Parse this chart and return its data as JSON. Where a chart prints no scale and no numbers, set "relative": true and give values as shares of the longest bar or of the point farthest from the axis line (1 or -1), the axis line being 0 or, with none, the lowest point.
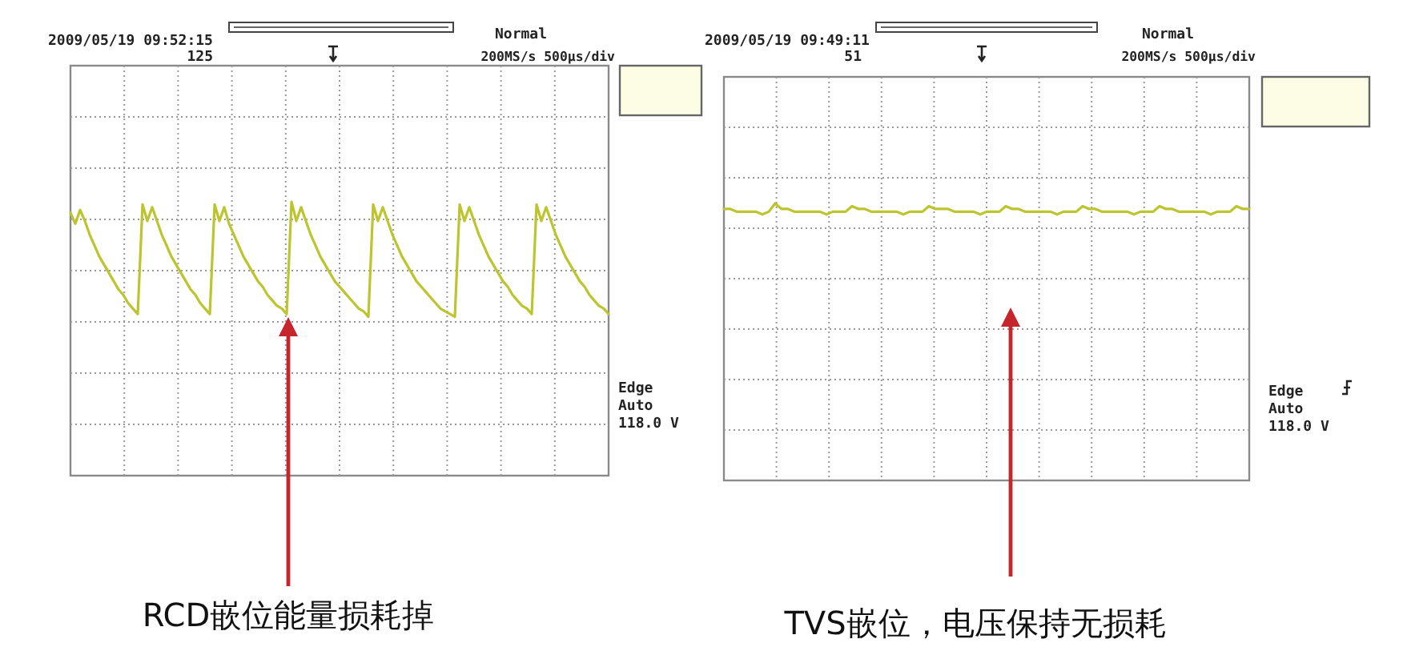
{
  "chart_data": [
    {
      "type": "line",
      "relative": true,
      "grid": true,
      "categories": [
        null,
        null,
        null,
        null,
        null,
        null,
        null,
        null,
        null,
        null,
        null,
        null,
        null,
        null,
        null,
        null,
        null,
        null,
        null,
        null,
        null,
        null,
        null,
        null,
        null,
        null,
        null,
        null,
        null,
        null,
        null,
        null,
        null,
        null,
        null,
        null,
        null,
        null,
        null,
        null,
        null,
        null,
        null,
        null,
        null,
        null,
        null,
        null,
        null,
        null,
        null,
        null,
        null,
        null,
        null,
        null,
        null,
        null,
        null,
        null,
        null,
        null,
        null,
        null,
        null,
        null,
        null,
        null,
        null,
        null,
        null,
        null,
        null,
        null,
        null,
        null,
        null,
        null,
        null,
        null,
        null,
        null,
        null,
        null,
        null,
        null,
        null,
        null,
        null,
        null,
        null,
        null,
        null,
        null,
        null,
        null,
        null,
        null,
        null,
        null,
        null,
        null,
        null,
        null,
        null,
        null,
        null,
        null,
        null,
        null,
        null,
        null,
        null
      ],
      "series": [
        {
          "color": "#bcc42e",
          "values": [
            0.96,
            0.92,
            0.97,
            0.93,
            0.88,
            0.84,
            0.8,
            0.77,
            0.74,
            0.71,
            0.68,
            0.66,
            0.63,
            0.61,
            0.59,
            0.99,
            0.93,
            0.98,
            0.93,
            0.88,
            0.84,
            0.8,
            0.77,
            0.74,
            0.71,
            0.68,
            0.66,
            0.63,
            0.61,
            0.59,
            0.99,
            0.93,
            0.98,
            0.92,
            0.88,
            0.84,
            0.8,
            0.77,
            0.74,
            0.71,
            0.69,
            0.66,
            0.64,
            0.62,
            0.61,
            0.59,
            1.0,
            0.93,
            0.98,
            0.93,
            0.88,
            0.84,
            0.8,
            0.77,
            0.74,
            0.71,
            0.69,
            0.67,
            0.65,
            0.63,
            0.61,
            0.6,
            0.58,
            0.99,
            0.93,
            0.98,
            0.93,
            0.88,
            0.84,
            0.8,
            0.77,
            0.74,
            0.71,
            0.69,
            0.67,
            0.65,
            0.63,
            0.61,
            0.6,
            0.59,
            0.58,
            0.99,
            0.93,
            0.98,
            0.93,
            0.88,
            0.84,
            0.8,
            0.77,
            0.74,
            0.71,
            0.69,
            0.66,
            0.64,
            0.62,
            0.61,
            0.59,
            0.99,
            0.93,
            0.98,
            0.93,
            0.88,
            0.84,
            0.8,
            0.77,
            0.74,
            0.71,
            0.69,
            0.66,
            0.64,
            0.62,
            0.61,
            0.59
          ]
        }
      ],
      "annotations": [
        "2009/05/19 09:52:15",
        "125",
        "Normal",
        "200MS/s 500µs/div",
        "Edge",
        "Auto",
        "118.0 V",
        "RCD嵌位能量损耗掉"
      ]
    },
    {
      "type": "line",
      "relative": true,
      "grid": true,
      "categories": [
        null,
        null,
        null,
        null,
        null,
        null,
        null,
        null,
        null,
        null,
        null,
        null,
        null,
        null,
        null,
        null,
        null,
        null,
        null,
        null,
        null,
        null,
        null,
        null,
        null,
        null,
        null,
        null,
        null,
        null,
        null,
        null,
        null,
        null,
        null,
        null,
        null,
        null,
        null,
        null,
        null,
        null,
        null,
        null,
        null,
        null,
        null,
        null,
        null,
        null,
        null,
        null,
        null,
        null,
        null,
        null,
        null,
        null,
        null,
        null,
        null,
        null,
        null,
        null,
        null,
        null,
        null,
        null,
        null,
        null,
        null,
        null,
        null,
        null,
        null,
        null,
        null,
        null,
        null,
        null,
        null,
        null,
        null
      ],
      "series": [
        {
          "color": "#bcc42e",
          "values": [
            0.98,
            0.98,
            0.97,
            0.97,
            0.97,
            0.97,
            0.96,
            0.97,
            1.0,
            0.98,
            0.98,
            0.97,
            0.97,
            0.97,
            0.97,
            0.97,
            0.96,
            0.97,
            0.97,
            0.97,
            0.99,
            0.98,
            0.98,
            0.97,
            0.97,
            0.97,
            0.97,
            0.97,
            0.96,
            0.97,
            0.97,
            0.97,
            0.99,
            0.98,
            0.98,
            0.98,
            0.97,
            0.97,
            0.97,
            0.97,
            0.96,
            0.97,
            0.97,
            0.97,
            0.99,
            0.98,
            0.98,
            0.97,
            0.97,
            0.97,
            0.97,
            0.97,
            0.96,
            0.97,
            0.97,
            0.97,
            0.99,
            0.98,
            0.98,
            0.97,
            0.97,
            0.97,
            0.97,
            0.97,
            0.96,
            0.97,
            0.97,
            0.97,
            0.99,
            0.98,
            0.98,
            0.97,
            0.97,
            0.97,
            0.97,
            0.97,
            0.96,
            0.97,
            0.97,
            0.97,
            0.99,
            0.98,
            0.98
          ]
        }
      ],
      "annotations": [
        "2009/05/19 09:49:11",
        "51",
        "Normal",
        "200MS/s 500µs/div",
        "Edge",
        "Auto",
        "118.0 V",
        "TVS嵌位，电压保持无损耗"
      ]
    }
  ]
}
